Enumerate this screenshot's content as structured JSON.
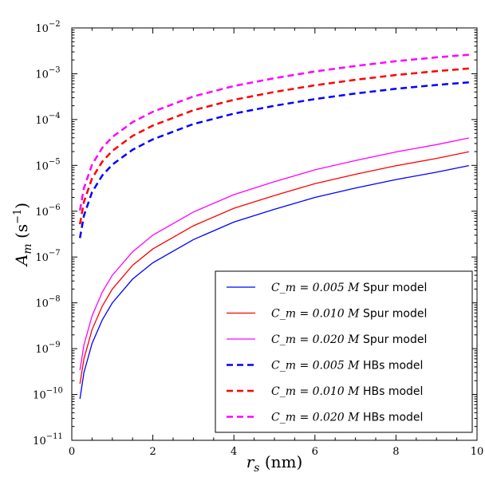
{
  "chart_data": {
    "type": "line",
    "title": "",
    "xlabel": "r_s (nm)",
    "ylabel": "A_m (s^-1)",
    "xlim": [
      0,
      10
    ],
    "ylim": [
      1e-11,
      0.01
    ],
    "yscale": "log",
    "grid": false,
    "legend_placement": "lower-right",
    "x_ticks": [
      "0",
      "2",
      "4",
      "6",
      "8",
      "10"
    ],
    "y_ticks": [
      {
        "value": 1e-11,
        "base": "10",
        "exp": "−11"
      },
      {
        "value": 1e-10,
        "base": "10",
        "exp": "−10"
      },
      {
        "value": 1e-09,
        "base": "10",
        "exp": "−9"
      },
      {
        "value": 1e-08,
        "base": "10",
        "exp": "−8"
      },
      {
        "value": 1e-07,
        "base": "10",
        "exp": "−7"
      },
      {
        "value": 1e-06,
        "base": "10",
        "exp": "−6"
      },
      {
        "value": 1e-05,
        "base": "10",
        "exp": "−5"
      },
      {
        "value": 0.0001,
        "base": "10",
        "exp": "−4"
      },
      {
        "value": 0.001,
        "base": "10",
        "exp": "−3"
      },
      {
        "value": 0.01,
        "base": "10",
        "exp": "−2"
      }
    ],
    "series": [
      {
        "name": "C_m = 0.005 M Spur model",
        "label_math": "C_m = 0.005 M",
        "label_text": "Spur model",
        "color": "#0000ff",
        "dash": false,
        "x": [
          0.2,
          0.3,
          0.5,
          0.75,
          1.0,
          1.5,
          2.0,
          3.0,
          4.0,
          5.0,
          6.0,
          7.0,
          8.0,
          9.0,
          9.8
        ],
        "y": [
          8e-11,
          3e-10,
          1.3e-09,
          4.2e-09,
          1e-08,
          3.3e-08,
          7.5e-08,
          2.4e-07,
          5.8e-07,
          1.1e-06,
          2e-06,
          3.2e-06,
          4.9e-06,
          7.1e-06,
          9.9e-06
        ]
      },
      {
        "name": "C_m = 0.010 M Spur model",
        "label_math": "C_m = 0.010 M",
        "label_text": "Spur model",
        "color": "#ff0000",
        "dash": false,
        "x": [
          0.2,
          0.3,
          0.5,
          0.75,
          1.0,
          1.5,
          2.0,
          3.0,
          4.0,
          5.0,
          6.0,
          7.0,
          8.0,
          9.0,
          9.8
        ],
        "y": [
          1.7e-10,
          6e-10,
          2.6e-09,
          8.4e-09,
          2e-08,
          6.6e-08,
          1.5e-07,
          4.8e-07,
          1.16e-06,
          2.2e-06,
          4e-06,
          6.4e-06,
          9.8e-06,
          1.42e-05,
          1.98e-05
        ]
      },
      {
        "name": "C_m = 0.020 M Spur model",
        "label_math": "C_m = 0.020 M",
        "label_text": "Spur model",
        "color": "#ff00ff",
        "dash": false,
        "x": [
          0.2,
          0.3,
          0.5,
          0.75,
          1.0,
          1.5,
          2.0,
          3.0,
          4.0,
          5.0,
          6.0,
          7.0,
          8.0,
          9.0,
          9.8
        ],
        "y": [
          3.4e-10,
          1.2e-09,
          5.2e-09,
          1.7e-08,
          4e-08,
          1.3e-07,
          3e-07,
          9.6e-07,
          2.3e-06,
          4.4e-06,
          8e-06,
          1.28e-05,
          1.96e-05,
          2.84e-05,
          3.96e-05
        ]
      },
      {
        "name": "C_m = 0.005 M HBs model",
        "label_math": "C_m = 0.005 M",
        "label_text": "HBs model",
        "color": "#0000ff",
        "dash": true,
        "x": [
          0.2,
          0.3,
          0.5,
          0.75,
          1.0,
          1.5,
          2.0,
          3.0,
          4.0,
          5.0,
          6.0,
          7.0,
          8.0,
          9.0,
          9.8
        ],
        "y": [
          2.6e-07,
          8e-07,
          2.6e-06,
          6e-06,
          1.04e-05,
          2.2e-05,
          3.7e-05,
          8e-05,
          0.000135,
          0.0002,
          0.00028,
          0.00037,
          0.00047,
          0.00057,
          0.00065
        ]
      },
      {
        "name": "C_m = 0.010 M HBs model",
        "label_math": "C_m = 0.010 M",
        "label_text": "HBs model",
        "color": "#ff0000",
        "dash": true,
        "x": [
          0.2,
          0.3,
          0.5,
          0.75,
          1.0,
          1.5,
          2.0,
          3.0,
          4.0,
          5.0,
          6.0,
          7.0,
          8.0,
          9.0,
          9.8
        ],
        "y": [
          5.2e-07,
          1.6e-06,
          5.2e-06,
          1.2e-05,
          2.08e-05,
          4.4e-05,
          7.4e-05,
          0.00016,
          0.00027,
          0.0004,
          0.00056,
          0.00074,
          0.00094,
          0.00114,
          0.0013
        ]
      },
      {
        "name": "C_m = 0.020 M HBs model",
        "label_math": "C_m = 0.020 M",
        "label_text": "HBs model",
        "color": "#ff00ff",
        "dash": true,
        "x": [
          0.2,
          0.3,
          0.5,
          0.75,
          1.0,
          1.5,
          2.0,
          3.0,
          4.0,
          5.0,
          6.0,
          7.0,
          8.0,
          9.0,
          9.8
        ],
        "y": [
          1.04e-06,
          3.2e-06,
          1.04e-05,
          2.4e-05,
          4.16e-05,
          8.8e-05,
          0.000148,
          0.00032,
          0.00054,
          0.0008,
          0.00112,
          0.00148,
          0.00188,
          0.00228,
          0.0026
        ]
      }
    ]
  }
}
